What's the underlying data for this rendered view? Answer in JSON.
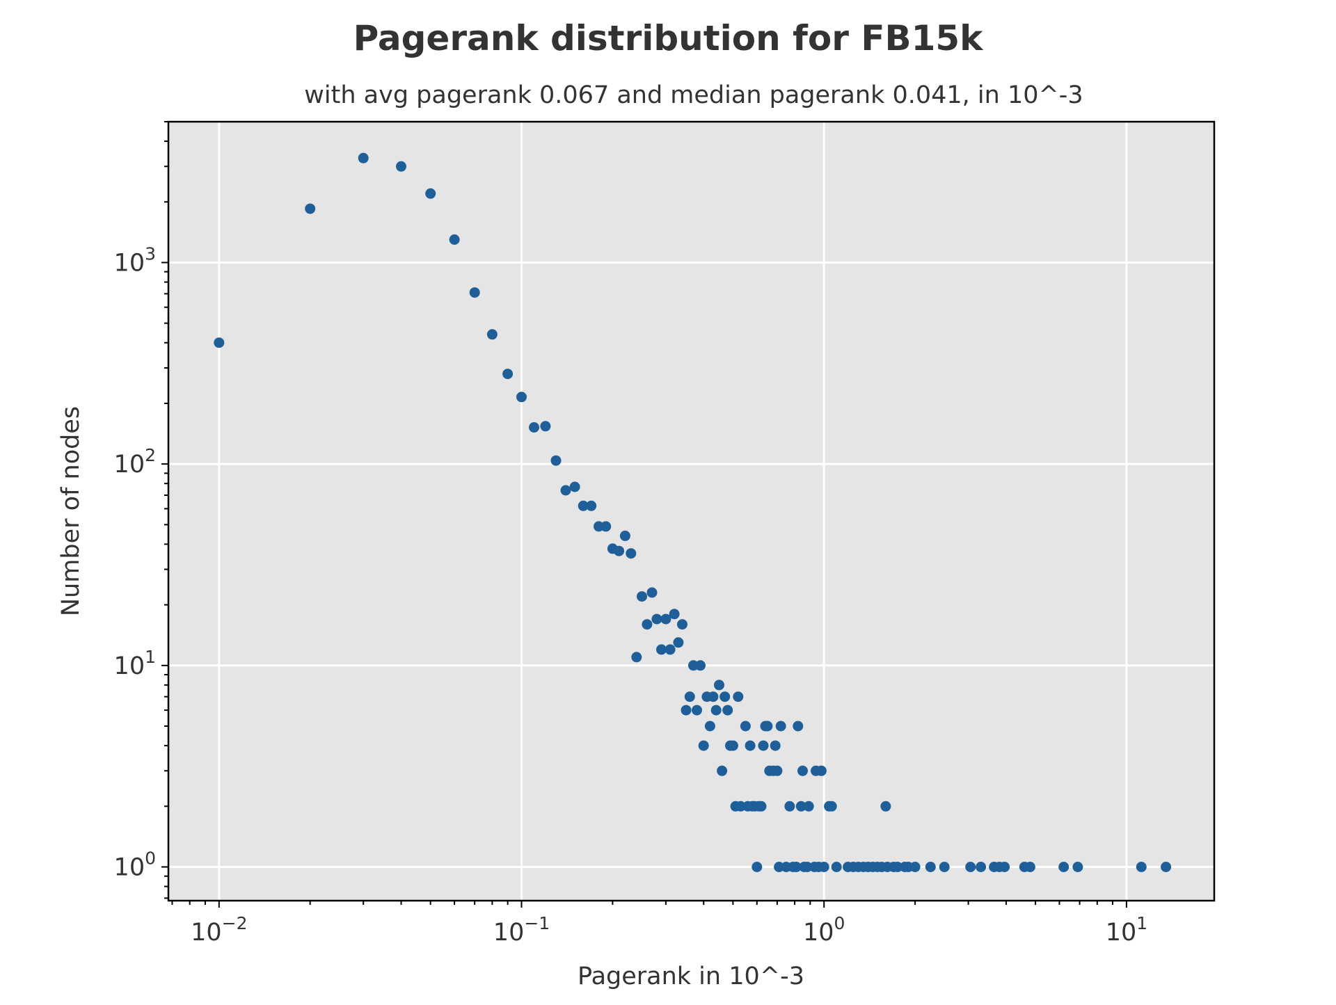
{
  "chart_data": {
    "type": "scatter",
    "title": "Pagerank distribution for FB15k",
    "subtitle": "with avg pagerank 0.067 and median pagerank 0.041, in 10^-3",
    "xlabel": "Pagerank in 10^-3",
    "ylabel": "Number of nodes",
    "xscale": "log",
    "yscale": "log",
    "xlim": [
      0.0068,
      19.5
    ],
    "ylim": [
      0.68,
      5000
    ],
    "grid": true,
    "x_ticks": [
      {
        "base": "10",
        "exp": "−2",
        "value": 0.01
      },
      {
        "base": "10",
        "exp": "−1",
        "value": 0.1
      },
      {
        "base": "10",
        "exp": "0",
        "value": 1
      },
      {
        "base": "10",
        "exp": "1",
        "value": 10
      }
    ],
    "y_ticks": [
      {
        "base": "10",
        "exp": "0",
        "value": 1
      },
      {
        "base": "10",
        "exp": "1",
        "value": 10
      },
      {
        "base": "10",
        "exp": "2",
        "value": 100
      },
      {
        "base": "10",
        "exp": "3",
        "value": 1000
      }
    ],
    "points": [
      [
        0.01,
        400
      ],
      [
        0.02,
        1850
      ],
      [
        0.03,
        3300
      ],
      [
        0.04,
        3000
      ],
      [
        0.05,
        2200
      ],
      [
        0.06,
        1300
      ],
      [
        0.07,
        710
      ],
      [
        0.08,
        440
      ],
      [
        0.09,
        280
      ],
      [
        0.1,
        215
      ],
      [
        0.11,
        152
      ],
      [
        0.12,
        154
      ],
      [
        0.13,
        104
      ],
      [
        0.14,
        74
      ],
      [
        0.15,
        77
      ],
      [
        0.16,
        62
      ],
      [
        0.17,
        62
      ],
      [
        0.18,
        49
      ],
      [
        0.19,
        49
      ],
      [
        0.2,
        38
      ],
      [
        0.21,
        37
      ],
      [
        0.22,
        44
      ],
      [
        0.23,
        36
      ],
      [
        0.24,
        11
      ],
      [
        0.25,
        22
      ],
      [
        0.26,
        16
      ],
      [
        0.27,
        23
      ],
      [
        0.28,
        17
      ],
      [
        0.29,
        12
      ],
      [
        0.3,
        17
      ],
      [
        0.31,
        12
      ],
      [
        0.32,
        18
      ],
      [
        0.33,
        13
      ],
      [
        0.34,
        16
      ],
      [
        0.35,
        6
      ],
      [
        0.36,
        7
      ],
      [
        0.37,
        10
      ],
      [
        0.38,
        6
      ],
      [
        0.39,
        10
      ],
      [
        0.4,
        4
      ],
      [
        0.41,
        7
      ],
      [
        0.42,
        5
      ],
      [
        0.43,
        7
      ],
      [
        0.44,
        6
      ],
      [
        0.45,
        8
      ],
      [
        0.46,
        3
      ],
      [
        0.47,
        7
      ],
      [
        0.48,
        6
      ],
      [
        0.49,
        4
      ],
      [
        0.5,
        4
      ],
      [
        0.51,
        2
      ],
      [
        0.52,
        7
      ],
      [
        0.53,
        2
      ],
      [
        0.55,
        5
      ],
      [
        0.56,
        2
      ],
      [
        0.57,
        4
      ],
      [
        0.58,
        2
      ],
      [
        0.59,
        2
      ],
      [
        0.6,
        1
      ],
      [
        0.61,
        2
      ],
      [
        0.62,
        2
      ],
      [
        0.63,
        4
      ],
      [
        0.64,
        5
      ],
      [
        0.65,
        5
      ],
      [
        0.66,
        3
      ],
      [
        0.68,
        3
      ],
      [
        0.69,
        4
      ],
      [
        0.7,
        3
      ],
      [
        0.71,
        1
      ],
      [
        0.72,
        5
      ],
      [
        0.75,
        1
      ],
      [
        0.77,
        2
      ],
      [
        0.79,
        1
      ],
      [
        0.81,
        1
      ],
      [
        0.82,
        5
      ],
      [
        0.84,
        2
      ],
      [
        0.85,
        3
      ],
      [
        0.86,
        1
      ],
      [
        0.88,
        1
      ],
      [
        0.89,
        2
      ],
      [
        0.93,
        1
      ],
      [
        0.94,
        3
      ],
      [
        0.96,
        1
      ],
      [
        0.98,
        3
      ],
      [
        1.0,
        1
      ],
      [
        1.04,
        2
      ],
      [
        1.06,
        2
      ],
      [
        1.1,
        1
      ],
      [
        1.2,
        1
      ],
      [
        1.25,
        1
      ],
      [
        1.3,
        1
      ],
      [
        1.35,
        1
      ],
      [
        1.4,
        1
      ],
      [
        1.45,
        1
      ],
      [
        1.5,
        1
      ],
      [
        1.55,
        1
      ],
      [
        1.6,
        2
      ],
      [
        1.62,
        1
      ],
      [
        1.7,
        1
      ],
      [
        1.75,
        1
      ],
      [
        1.85,
        1
      ],
      [
        1.9,
        1
      ],
      [
        2.0,
        1
      ],
      [
        2.25,
        1
      ],
      [
        2.5,
        1
      ],
      [
        3.05,
        1
      ],
      [
        3.3,
        1
      ],
      [
        3.65,
        1
      ],
      [
        3.8,
        1
      ],
      [
        3.95,
        1
      ],
      [
        4.6,
        1
      ],
      [
        4.8,
        1
      ],
      [
        6.2,
        1
      ],
      [
        6.9,
        1
      ],
      [
        11.2,
        1
      ],
      [
        13.5,
        1
      ]
    ],
    "colors": {
      "marker": "#1f5f99",
      "plot_background": "#e5e5e5",
      "grid": "#ffffff",
      "text": "#333333"
    }
  }
}
